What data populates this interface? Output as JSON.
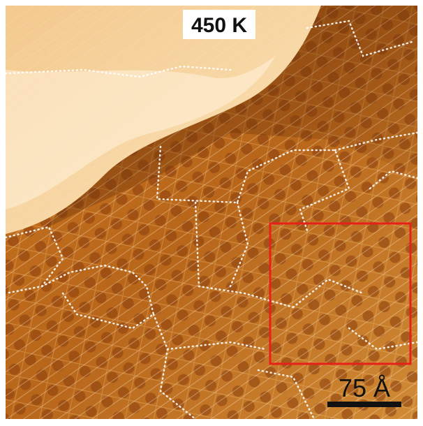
{
  "label": "450 K",
  "scale_bar": "75 Å"
}
